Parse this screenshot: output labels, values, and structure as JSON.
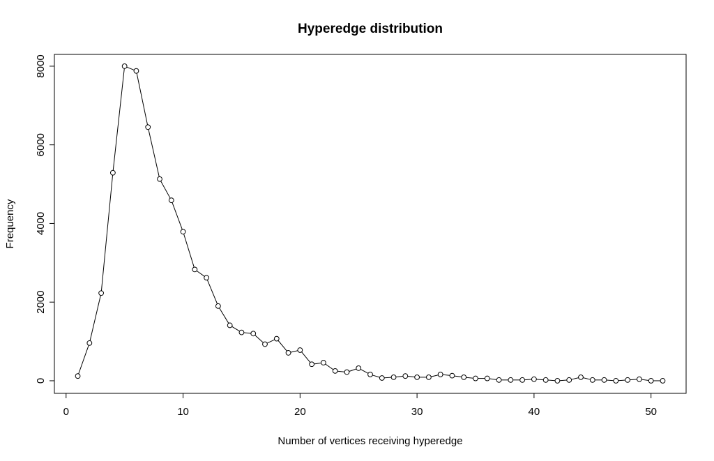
{
  "chart_data": {
    "type": "line",
    "title": "Hyperedge distribution",
    "xlabel": "Number of vertices receiving hyperedge",
    "ylabel": "Frequency",
    "xlim": [
      -1,
      53
    ],
    "ylim": [
      -320,
      8300
    ],
    "x_ticks": [
      0,
      10,
      20,
      30,
      40,
      50
    ],
    "y_ticks": [
      0,
      2000,
      4000,
      6000,
      8000
    ],
    "grid": false,
    "legend": "none",
    "markers": "open-circle",
    "colors": {
      "line": "#000000",
      "marker": "#000000"
    },
    "series": [
      {
        "x": [
          1,
          2,
          3,
          4,
          5,
          6,
          7,
          8,
          9,
          10,
          11,
          12,
          13,
          14,
          15,
          16,
          17,
          18,
          19,
          20,
          21,
          22,
          23,
          24,
          25,
          26,
          27,
          28,
          29,
          30,
          31,
          32,
          33,
          34,
          35,
          36,
          37,
          38,
          39,
          40,
          41,
          42,
          43,
          44,
          45,
          46,
          47,
          48,
          49,
          50,
          51
        ],
        "y": [
          120,
          960,
          2230,
          5290,
          8000,
          7880,
          6450,
          5130,
          4590,
          3790,
          2830,
          2620,
          1900,
          1410,
          1230,
          1200,
          930,
          1070,
          710,
          780,
          420,
          460,
          250,
          220,
          320,
          160,
          70,
          90,
          120,
          90,
          90,
          160,
          130,
          90,
          60,
          60,
          20,
          20,
          20,
          40,
          20,
          0,
          20,
          90,
          20,
          20,
          0,
          20,
          40,
          0,
          0
        ]
      }
    ]
  }
}
